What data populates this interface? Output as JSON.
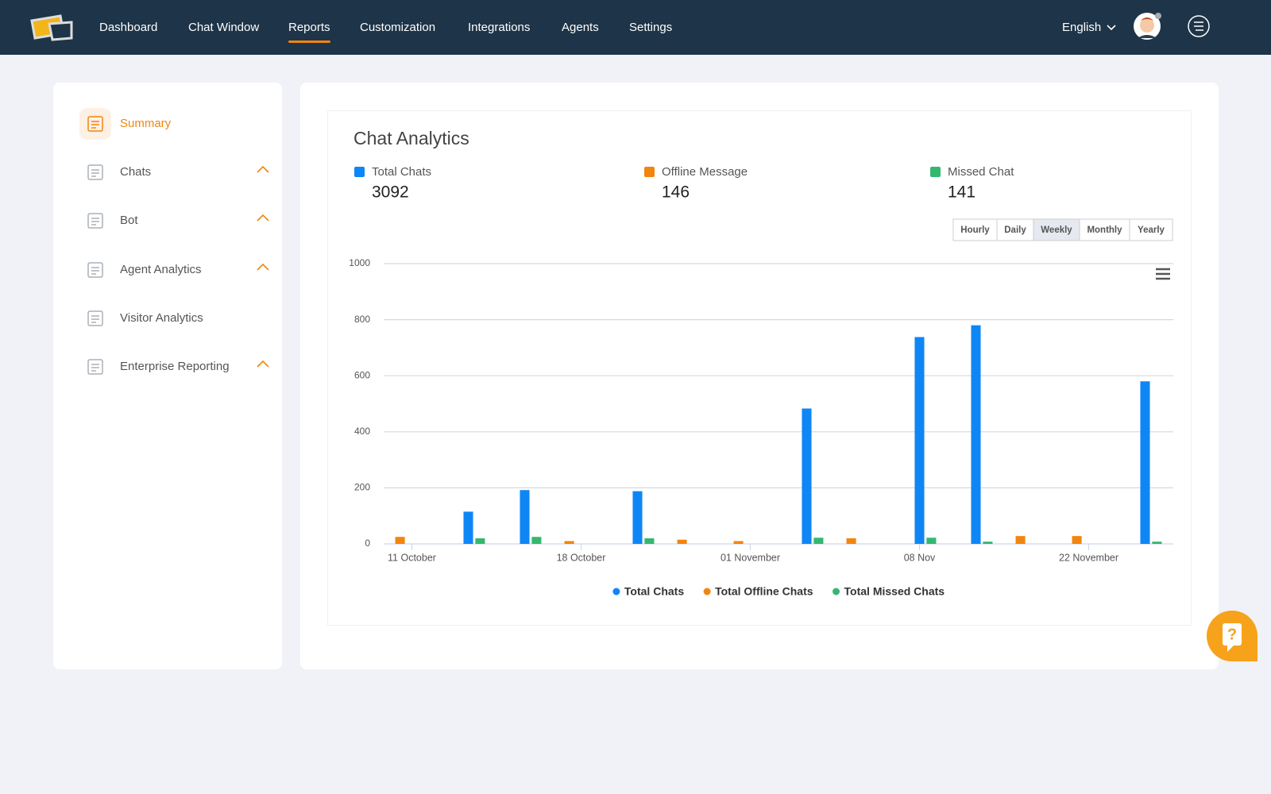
{
  "nav": {
    "items": [
      "Dashboard",
      "Chat Window",
      "Reports",
      "Customization",
      "Integrations",
      "Agents",
      "Settings"
    ],
    "active": 2,
    "language": "English"
  },
  "sidebar": {
    "active": 0,
    "items": [
      {
        "label": "Summary",
        "expandable": false
      },
      {
        "label": "Chats",
        "expandable": true
      },
      {
        "label": "Bot",
        "expandable": true
      },
      {
        "label": "Agent Analytics",
        "expandable": true
      },
      {
        "label": "Visitor Analytics",
        "expandable": false
      },
      {
        "label": "Enterprise Reporting",
        "expandable": true
      }
    ]
  },
  "stats": [
    {
      "label": "Total Chats",
      "value": 3092,
      "color": "#0f86f5"
    },
    {
      "label": "Offline Message",
      "value": 146,
      "color": "#f2850f"
    },
    {
      "label": "Missed Chat",
      "value": 141,
      "color": "#34b86f"
    }
  ],
  "time_filters": {
    "items": [
      "Hourly",
      "Daily",
      "Weekly",
      "Monthly",
      "Yearly"
    ],
    "active": 2
  },
  "chart_data": {
    "type": "bar",
    "title": "Chat Analytics",
    "categories": [
      "11 October",
      null,
      null,
      "18 October",
      null,
      null,
      "01 November",
      null,
      null,
      "08 Nov",
      null,
      null,
      "22 November",
      null
    ],
    "series": [
      {
        "name": "Total Chats",
        "color": "#0f86f5",
        "values": [
          0,
          115,
          192,
          0,
          188,
          0,
          0,
          483,
          0,
          738,
          780,
          0,
          0,
          580
        ]
      },
      {
        "name": "Total Offline Chats",
        "color": "#f2850f",
        "values": [
          25,
          0,
          0,
          10,
          0,
          15,
          10,
          0,
          20,
          0,
          0,
          28,
          28,
          0
        ]
      },
      {
        "name": "Total Missed Chats",
        "color": "#34b86f",
        "values": [
          0,
          20,
          25,
          0,
          20,
          0,
          0,
          22,
          0,
          22,
          8,
          0,
          0,
          8
        ]
      }
    ],
    "ylim": [
      0,
      1000
    ],
    "yticks": [
      0,
      200,
      400,
      600,
      800,
      1000
    ],
    "grid": true,
    "legend": "bottom"
  }
}
